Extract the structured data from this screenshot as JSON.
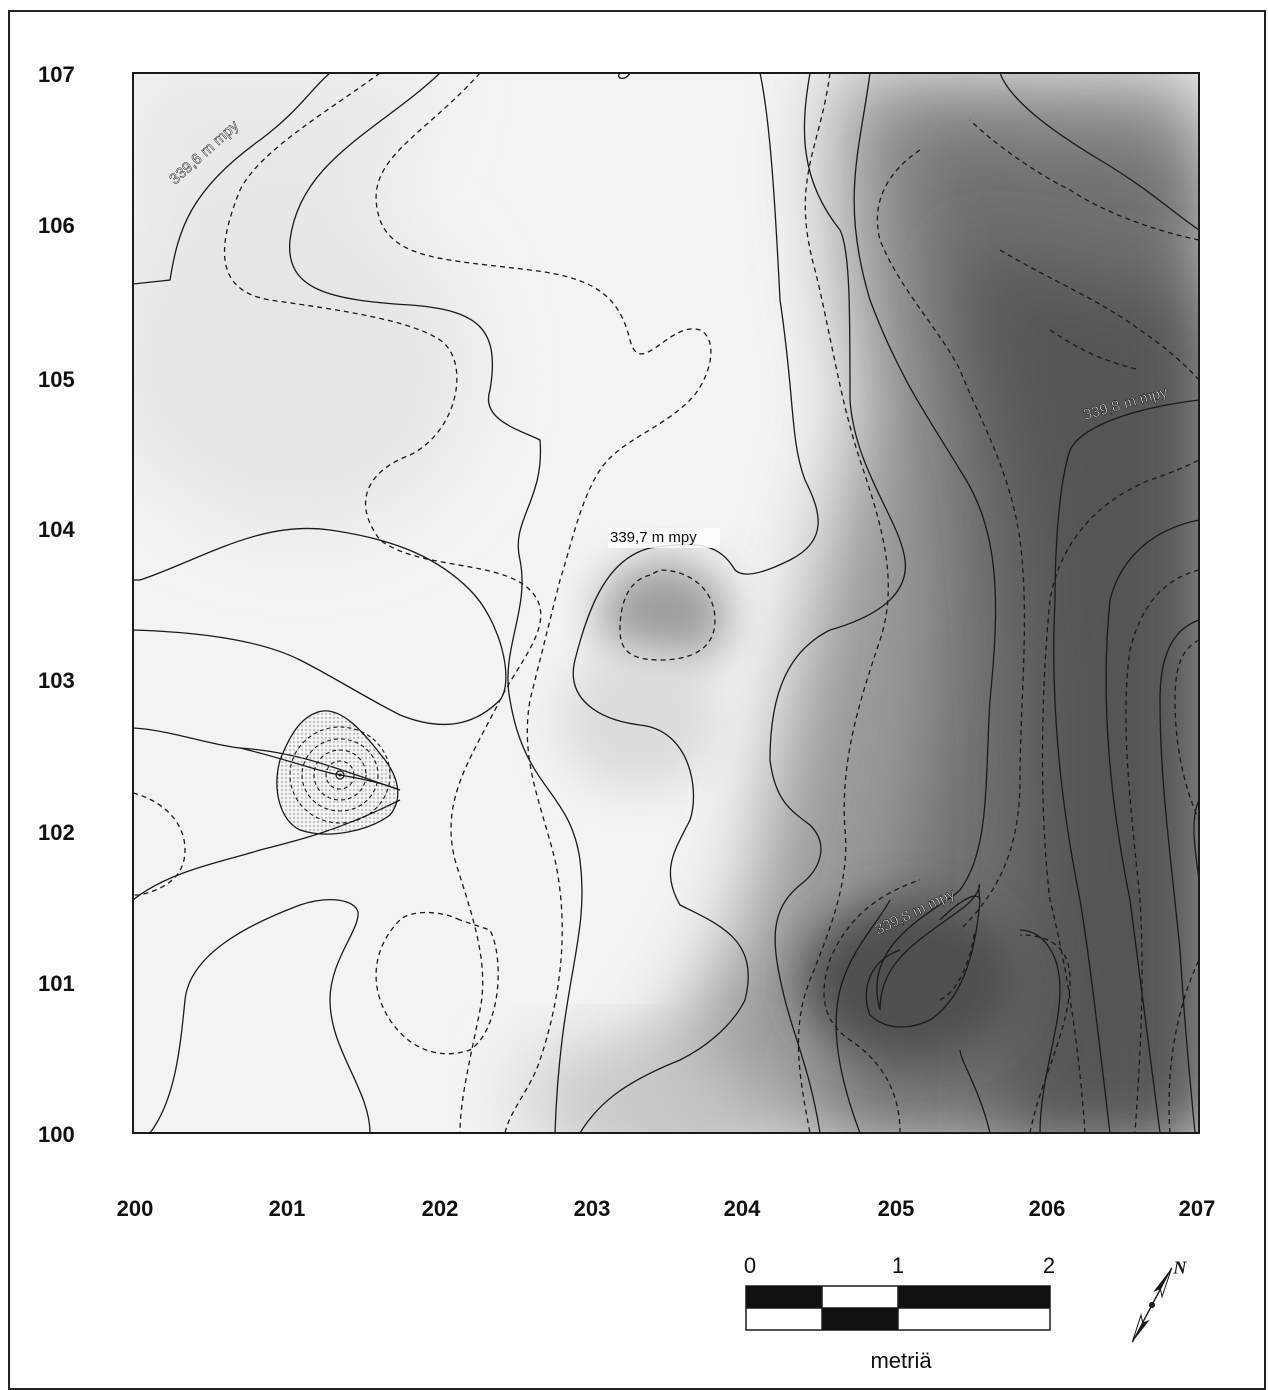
{
  "axes": {
    "y_labels": [
      "107",
      "106",
      "105",
      "104",
      "103",
      "102",
      "101",
      "100"
    ],
    "x_labels": [
      "200",
      "201",
      "202",
      "203",
      "204",
      "205",
      "206",
      "207"
    ]
  },
  "contour_labels": {
    "nw": "339,6 m mpy",
    "center": "339,7 m mpy",
    "east": "339,8 m mpy",
    "southeast": "339,8 m mpy"
  },
  "scale_bar": {
    "ticks": [
      "0",
      "1",
      "2"
    ],
    "unit": "metriä"
  },
  "north_arrow": {
    "label": "N",
    "icon": "north-arrow-icon"
  },
  "colors": {
    "low_fill": "#f2f2f2",
    "high_fill": "#4a4a4a",
    "contour": "#1a1a1a"
  }
}
